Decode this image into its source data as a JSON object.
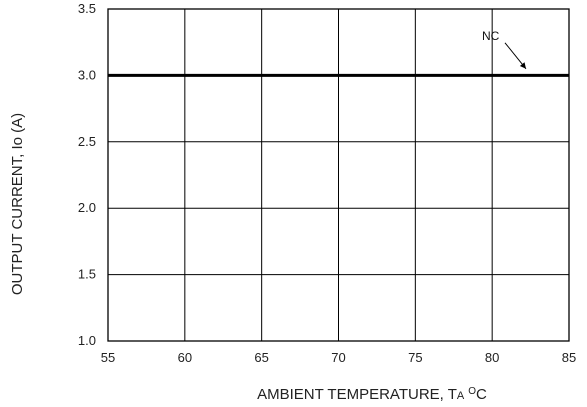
{
  "chart_data": {
    "type": "line",
    "xlim": [
      55,
      85
    ],
    "ylim": [
      1.0,
      3.5
    ],
    "x_ticks": [
      55,
      60,
      65,
      70,
      75,
      80,
      85
    ],
    "y_ticks": [
      1.0,
      1.5,
      2.0,
      2.5,
      3.0,
      3.5
    ],
    "x_tick_labels": [
      "55",
      "60",
      "65",
      "70",
      "75",
      "80",
      "85"
    ],
    "y_tick_labels": [
      "1.0",
      "1.5",
      "2.0",
      "2.5",
      "3.0",
      "3.5"
    ],
    "xlabel": {
      "text": "AMBIENT TEMPERATURE, T",
      "subscript": "A",
      "superscript": "O",
      "suffix": "C"
    },
    "ylabel": "OUTPUT CURRENT, Io  (A)",
    "grid": true,
    "series": [
      {
        "name": "NC",
        "x": [
          55,
          85
        ],
        "y": [
          3.0,
          3.0
        ]
      }
    ],
    "annotations": [
      {
        "text": "NC",
        "points_to": {
          "x": 82.2,
          "y": 3.05
        }
      }
    ]
  }
}
